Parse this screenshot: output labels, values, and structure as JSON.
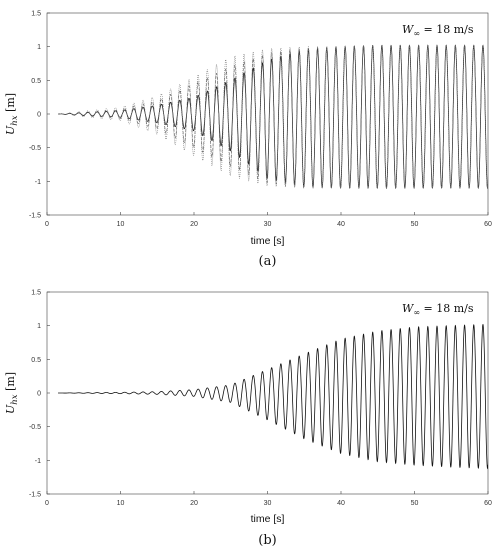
{
  "figure": {
    "panels": [
      {
        "label": "(a)"
      },
      {
        "label": "(b)"
      }
    ]
  },
  "chart_data": [
    {
      "type": "line",
      "panel": "(a)",
      "title": "",
      "xlabel": "time [s]",
      "ylabel": "U_hx [m]",
      "ylabel_parts": {
        "main": "U",
        "sub": "hx",
        "unit": " [m]"
      },
      "annotation": "W∞ = 18 m/s",
      "annotation_parts": {
        "main": "W",
        "sub": "∞",
        "rest": " = 18 m/s"
      },
      "xlim": [
        0,
        60
      ],
      "ylim": [
        -1.5,
        1.5
      ],
      "xticks": [
        0,
        10,
        20,
        30,
        40,
        50,
        60
      ],
      "yticks": [
        1.5,
        1,
        0.5,
        0,
        -0.5,
        -1,
        -1.5
      ],
      "ytick_labels": [
        "1.5",
        "1",
        "0.5",
        "0",
        "-0.5",
        "-1",
        "-1.5"
      ],
      "grid": false,
      "legend": "none",
      "series": [
        {
          "style": "solid",
          "color": "#222222",
          "period_s": 1.25,
          "envelope": {
            "x": [
              1.5,
              10,
              15,
              20,
              25,
              30,
              35,
              40,
              45,
              50,
              55,
              60
            ],
            "max": [
              0.0,
              0.05,
              0.13,
              0.25,
              0.5,
              0.8,
              0.95,
              1.0,
              1.02,
              1.02,
              1.02,
              1.02
            ],
            "min": [
              0.0,
              -0.05,
              -0.13,
              -0.25,
              -0.55,
              -0.95,
              -1.08,
              -1.1,
              -1.1,
              -1.1,
              -1.1,
              -1.1
            ]
          }
        },
        {
          "style": "dashed",
          "color": "#555555",
          "period_s": 1.25,
          "envelope": {
            "x": [
              1.5,
              10,
              15,
              20,
              25,
              30,
              35,
              40,
              45,
              50,
              55,
              60
            ],
            "max": [
              0.0,
              0.07,
              0.2,
              0.45,
              0.7,
              0.9,
              0.98,
              1.0,
              1.02,
              1.02,
              1.02,
              1.02
            ],
            "min": [
              0.0,
              -0.07,
              -0.22,
              -0.5,
              -0.78,
              -1.02,
              -1.1,
              -1.1,
              -1.1,
              -1.1,
              -1.1,
              -1.1
            ]
          }
        },
        {
          "style": "dotted",
          "color": "#777777",
          "period_s": 1.25,
          "envelope": {
            "x": [
              1.5,
              10,
              15,
              20,
              25,
              30,
              35,
              40,
              45,
              50,
              55,
              60
            ],
            "max": [
              0.0,
              0.1,
              0.27,
              0.55,
              0.85,
              0.97,
              1.0,
              1.01,
              1.02,
              1.02,
              1.02,
              1.02
            ],
            "min": [
              0.0,
              -0.1,
              -0.3,
              -0.62,
              -0.92,
              -1.07,
              -1.1,
              -1.1,
              -1.1,
              -1.1,
              -1.1,
              -1.1
            ]
          }
        }
      ]
    },
    {
      "type": "line",
      "panel": "(b)",
      "title": "",
      "xlabel": "time [s]",
      "ylabel": "U_hx [m]",
      "ylabel_parts": {
        "main": "U",
        "sub": "hx",
        "unit": " [m]"
      },
      "annotation": "W∞ = 18 m/s",
      "annotation_parts": {
        "main": "W",
        "sub": "∞",
        "rest": " = 18 m/s"
      },
      "xlim": [
        0,
        60
      ],
      "ylim": [
        -1.5,
        1.5
      ],
      "xticks": [
        0,
        10,
        20,
        30,
        40,
        50,
        60
      ],
      "yticks": [
        1.5,
        1,
        0.5,
        0,
        -0.5,
        -1,
        -1.5
      ],
      "ytick_labels": [
        "1.5",
        "1",
        "0.5",
        "0",
        "-0.5",
        "-1",
        "-1.5"
      ],
      "grid": false,
      "legend": "none",
      "series": [
        {
          "style": "solid",
          "color": "#111111",
          "period_s": 1.25,
          "envelope": {
            "x": [
              1.5,
              10,
              15,
              20,
              25,
              30,
              35,
              40,
              45,
              50,
              55,
              60
            ],
            "max": [
              0.0,
              0.01,
              0.02,
              0.05,
              0.12,
              0.35,
              0.58,
              0.8,
              0.92,
              0.98,
              1.0,
              1.02
            ],
            "min": [
              0.0,
              -0.01,
              -0.02,
              -0.05,
              -0.14,
              -0.4,
              -0.68,
              -0.9,
              -1.02,
              -1.07,
              -1.1,
              -1.12
            ]
          }
        }
      ]
    }
  ]
}
